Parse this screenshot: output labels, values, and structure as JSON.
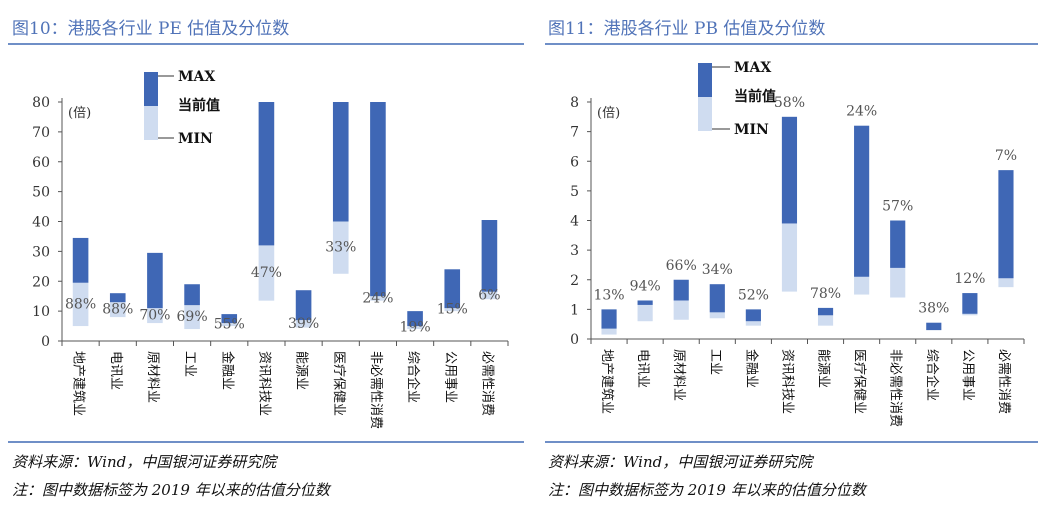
{
  "figures": [
    {
      "title": "图10：港股各行业 PE 估值及分位数",
      "source": "资料来源：Wind，中国银河证券研究院",
      "note": "注：图中数据标签为 2019 年以来的估值分位数"
    },
    {
      "title": "图11：港股各行业 PB 估值及分位数",
      "source": "资料来源：Wind，中国银河证券研究院",
      "note": "注：图中数据标签为 2019 年以来的估值分位数"
    }
  ],
  "colors": {
    "upper": "#3f67b5",
    "lower": "#cfdcf0",
    "text": "#333333",
    "title": "#5073b8",
    "rule": "#6f8fc7"
  },
  "chart_data": [
    {
      "type": "bar",
      "subtype": "floating-range",
      "title": "图10：港股各行业 PE 估值及分位数",
      "unit_label": "(倍)",
      "ylim": [
        0,
        80
      ],
      "yticks": [
        0,
        10,
        20,
        30,
        40,
        50,
        60,
        70,
        80
      ],
      "legend": {
        "max": "MAX",
        "current": "当前值",
        "min": "MIN",
        "position": "top-left"
      },
      "categories": [
        "地产建筑业",
        "电讯业",
        "原材料业",
        "工业",
        "金融业",
        "资讯科技业",
        "能源业",
        "医疗保健业",
        "非必需性消费",
        "综合企业",
        "公用事业",
        "必需性消费"
      ],
      "max": [
        34.5,
        16,
        29.5,
        19,
        9,
        80,
        17,
        80,
        80,
        10,
        24,
        40.5
      ],
      "current": [
        19.5,
        13,
        11,
        12,
        6,
        32,
        7,
        40,
        15,
        5,
        11,
        16.5
      ],
      "min": [
        5,
        8,
        6,
        4,
        5,
        13.5,
        4.5,
        22.5,
        13.5,
        4,
        10,
        14
      ],
      "percentiles": [
        "88%",
        "88%",
        "70%",
        "69%",
        "55%",
        "47%",
        "39%",
        "33%",
        "24%",
        "19%",
        "15%",
        "6%"
      ]
    },
    {
      "type": "bar",
      "subtype": "floating-range",
      "title": "图11：港股各行业 PB 估值及分位数",
      "unit_label": "(倍)",
      "ylim": [
        0,
        8
      ],
      "yticks": [
        0,
        1,
        2,
        3,
        4,
        5,
        6,
        7,
        8
      ],
      "legend": {
        "max": "MAX",
        "current": "当前值",
        "min": "MIN",
        "position": "top-left"
      },
      "categories": [
        "地产建筑业",
        "电讯业",
        "原材料业",
        "工业",
        "金融业",
        "资讯科技业",
        "能源业",
        "医疗保健业",
        "非必需性消费",
        "综合企业",
        "公用事业",
        "必需性消费"
      ],
      "max": [
        1.0,
        1.3,
        2.0,
        1.85,
        1.0,
        7.5,
        1.05,
        7.2,
        4.0,
        0.55,
        1.55,
        5.7
      ],
      "current": [
        0.35,
        1.15,
        1.3,
        0.9,
        0.6,
        3.9,
        0.8,
        2.1,
        2.4,
        0.3,
        0.85,
        2.05
      ],
      "min": [
        0.15,
        0.6,
        0.65,
        0.7,
        0.45,
        1.6,
        0.45,
        1.5,
        1.4,
        0.3,
        0.8,
        1.75
      ],
      "percentiles": [
        "13%",
        "94%",
        "66%",
        "34%",
        "52%",
        "58%",
        "78%",
        "24%",
        "57%",
        "38%",
        "12%",
        "7%"
      ]
    }
  ]
}
